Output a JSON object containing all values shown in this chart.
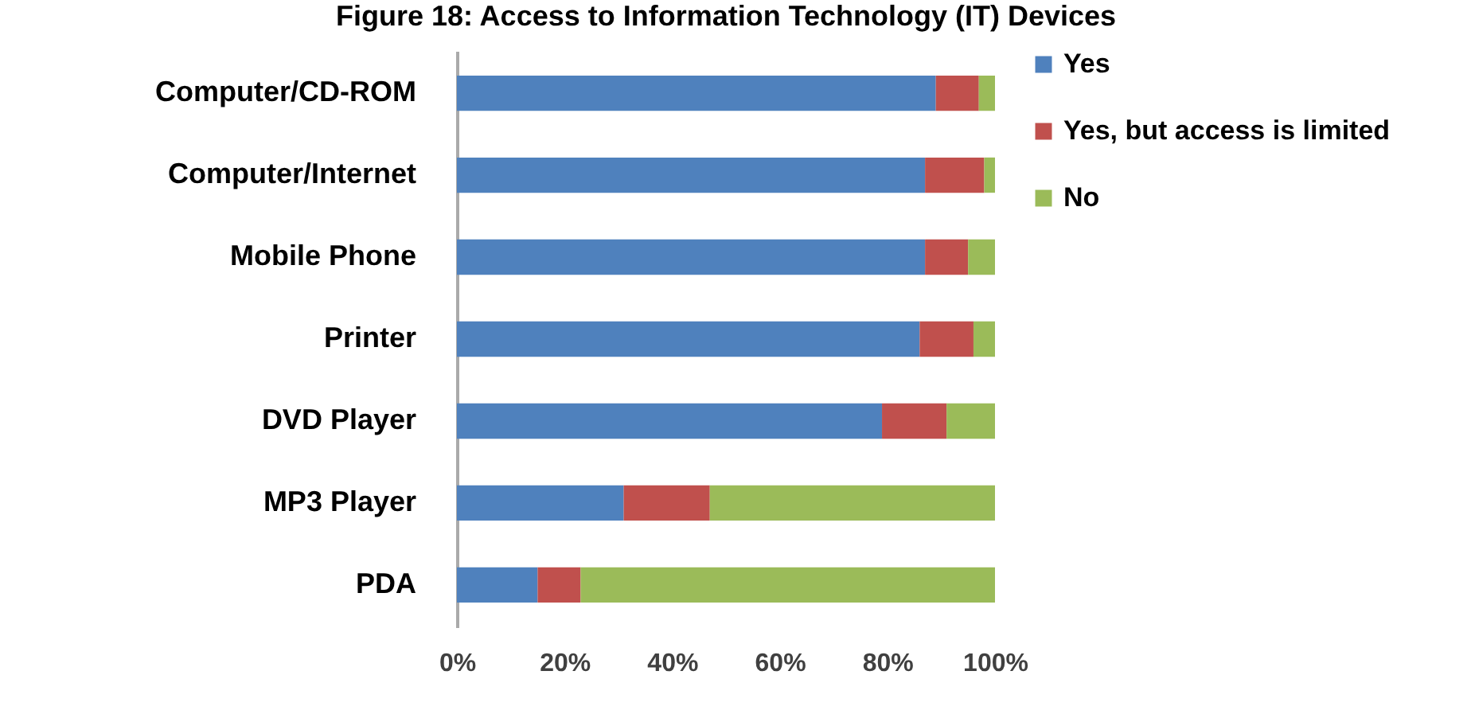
{
  "chart_data": {
    "type": "bar",
    "orientation": "horizontal",
    "stacked": true,
    "title": "Figure 18: Access to Information Technology (IT) Devices",
    "categories": [
      "Computer/CD-ROM",
      "Computer/Internet",
      "Mobile Phone",
      "Printer",
      "DVD Player",
      "MP3 Player",
      "PDA"
    ],
    "series": [
      {
        "name": "Yes",
        "color": "#4f81bd",
        "values": [
          89,
          87,
          87,
          86,
          79,
          31,
          15
        ]
      },
      {
        "name": "Yes, but access is limited",
        "color": "#c0504d",
        "values": [
          8,
          11,
          8,
          10,
          12,
          16,
          8
        ]
      },
      {
        "name": "No",
        "color": "#9bbb59",
        "values": [
          3,
          2,
          5,
          4,
          9,
          53,
          77
        ]
      }
    ],
    "xlim": [
      0,
      100
    ],
    "xticks": [
      {
        "value": 0,
        "label": "0%"
      },
      {
        "value": 20,
        "label": "20%"
      },
      {
        "value": 40,
        "label": "40%"
      },
      {
        "value": 60,
        "label": "60%"
      },
      {
        "value": 80,
        "label": "80%"
      },
      {
        "value": 100,
        "label": "100%"
      }
    ],
    "legend": "right",
    "grid": false
  }
}
